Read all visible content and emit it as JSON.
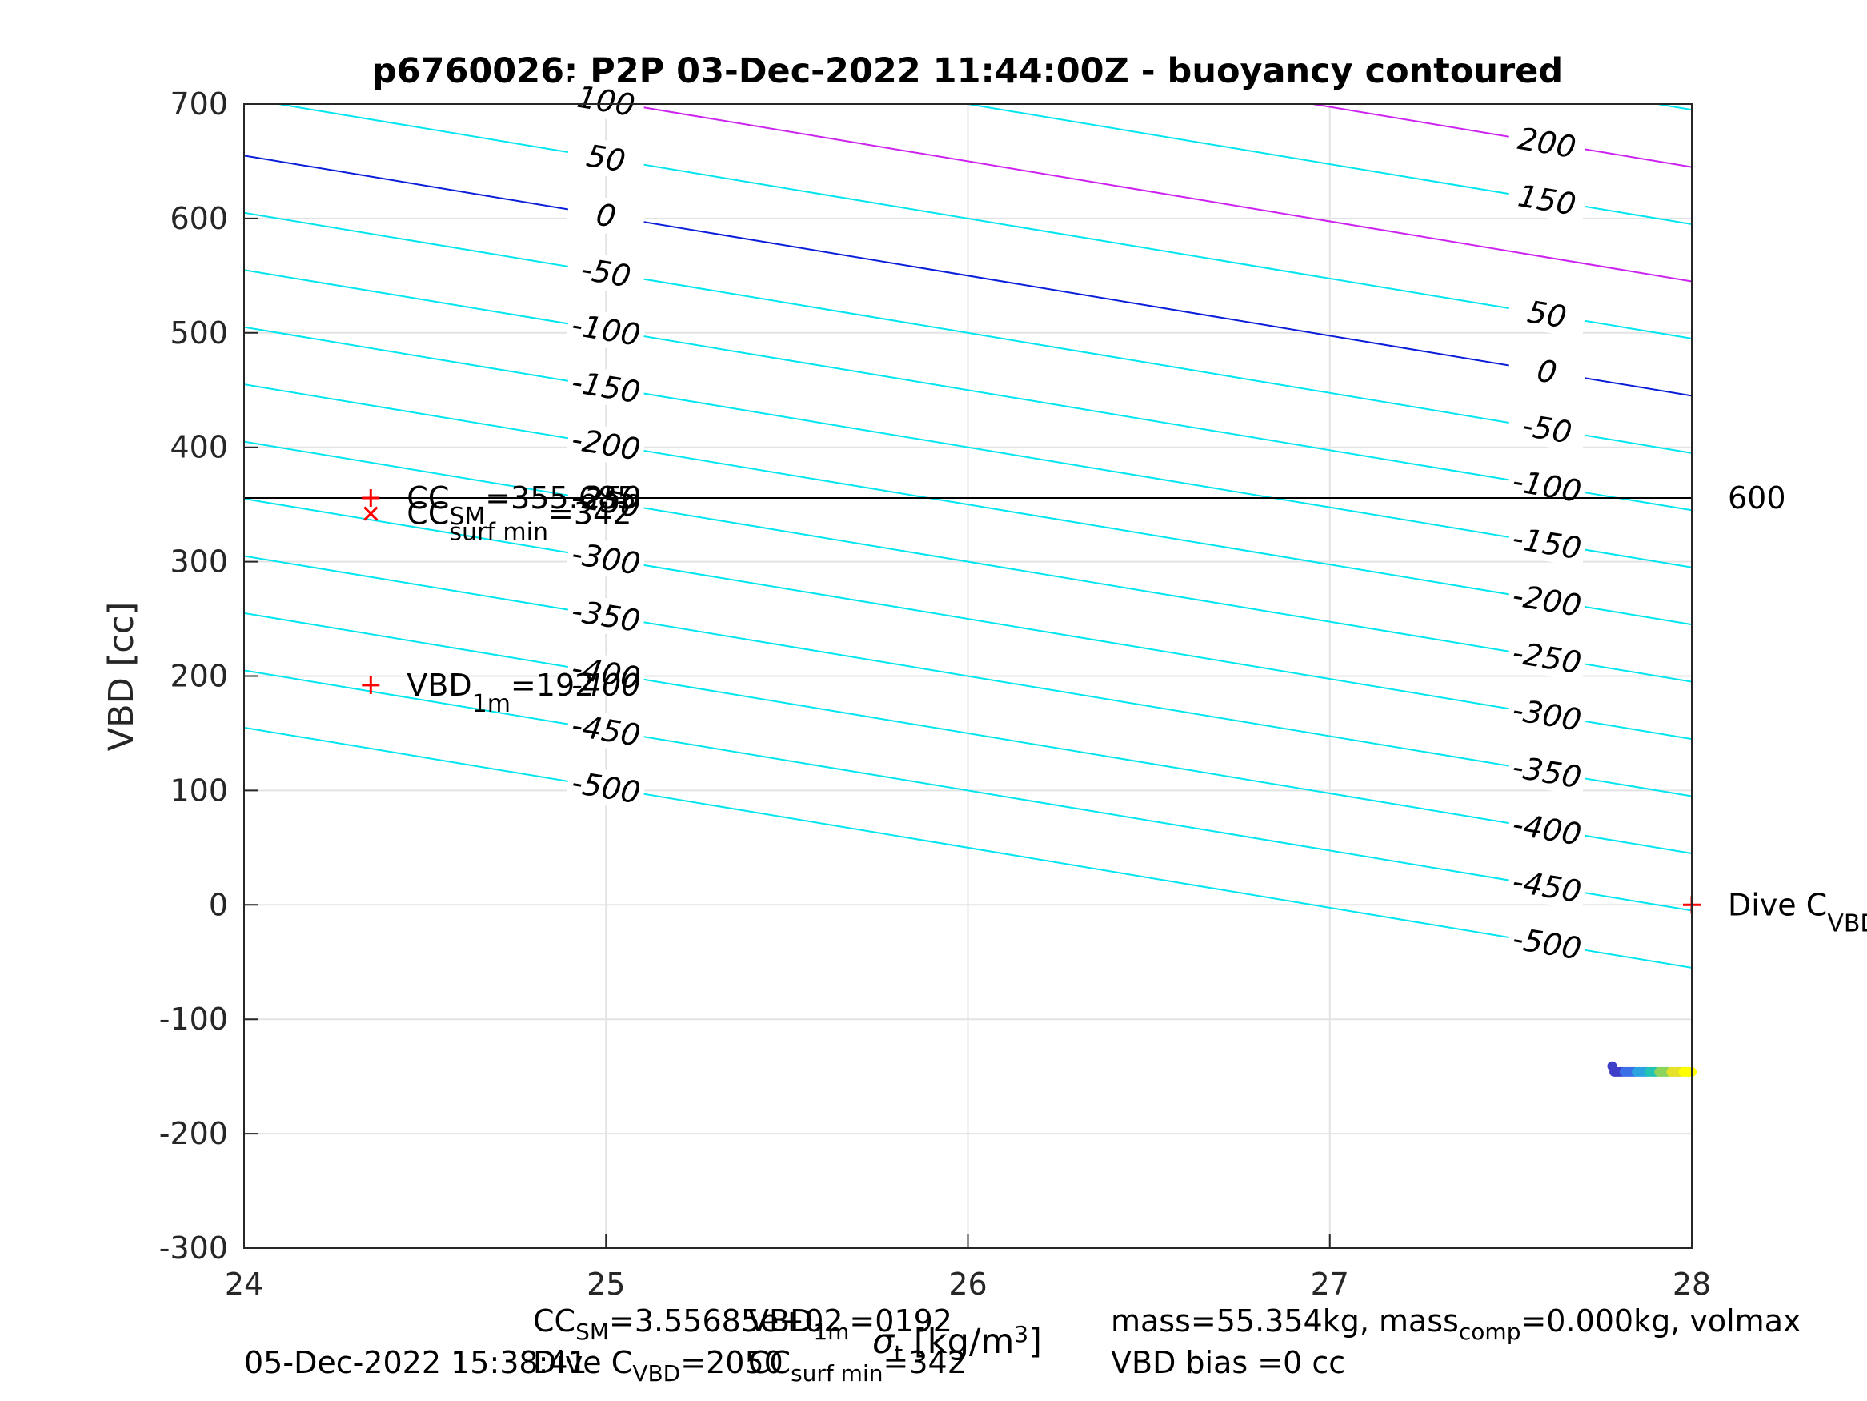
{
  "chart_data": {
    "type": "contour",
    "title": "p6760026: P2P 03-Dec-2022 11:44:00Z - buoyancy contoured",
    "ylabel": "VBD [cc]",
    "xlim": [
      24,
      28
    ],
    "ylim": [
      -300,
      700
    ],
    "x_ticks": [
      "24",
      "25",
      "26",
      "27",
      "28"
    ],
    "y_ticks": [
      "700",
      "600",
      "500",
      "400",
      "300",
      "200",
      "100",
      "0",
      "-100",
      "-200",
      "-300"
    ],
    "grid": true,
    "contours": {
      "slope_cc_per_unit_x": -52.5,
      "intercept_at_x24": 655,
      "levels": [
        {
          "value": -500,
          "label": "-500",
          "color": "#00e5ee"
        },
        {
          "value": -450,
          "label": "-450",
          "color": "#00e5ee"
        },
        {
          "value": -400,
          "label": "-400",
          "color": "#00e5ee"
        },
        {
          "value": -350,
          "label": "-350",
          "color": "#00e5ee"
        },
        {
          "value": -300,
          "label": "-300",
          "color": "#00e5ee"
        },
        {
          "value": -250,
          "label": "-250",
          "color": "#00e5ee"
        },
        {
          "value": -200,
          "label": "-200",
          "color": "#00e5ee"
        },
        {
          "value": -150,
          "label": "-150",
          "color": "#00e5ee"
        },
        {
          "value": -100,
          "label": "-100",
          "color": "#00e5ee"
        },
        {
          "value": -50,
          "label": "-50",
          "color": "#00e5ee"
        },
        {
          "value": 0,
          "label": "0",
          "color": "#0a1ed8"
        },
        {
          "value": 50,
          "label": "50",
          "color": "#00e5ee"
        },
        {
          "value": 100,
          "label": "100",
          "color": "#cc22ee"
        },
        {
          "value": 150,
          "label": "150",
          "color": "#00e5ee"
        },
        {
          "value": 200,
          "label": "200",
          "color": "#cc22ee"
        },
        {
          "value": 250,
          "label": "",
          "color": "#00e5ee"
        }
      ],
      "left_label_x": 25.0,
      "right_label_x": 27.6,
      "left_labels_shown": [
        "-500",
        "-450",
        "-400",
        "-350",
        "-300",
        "-250",
        "-200",
        "-150",
        "-100",
        "-50",
        "0",
        "50",
        "100"
      ],
      "right_labels_shown": [
        "-500",
        "-450",
        "-400",
        "-350",
        "-300",
        "-250",
        "-200",
        "-150",
        "-100",
        "-50",
        "0",
        "50",
        "150",
        "200"
      ]
    },
    "hline": {
      "y": 355.685,
      "color": "#000000",
      "right_label": "600"
    },
    "markers": [
      {
        "x": 24.35,
        "y": 355.685,
        "symbol": "+",
        "color": "#ff0000",
        "text": "CC",
        "sub": "SM",
        "suffix": "=355.685"
      },
      {
        "x": 24.35,
        "y": 342,
        "symbol": "x",
        "color": "#ff0000",
        "text": "CC",
        "sub": "surf min",
        "suffix": "=342"
      },
      {
        "x": 24.35,
        "y": 192,
        "symbol": "+",
        "color": "#ff0000",
        "text": "VBD",
        "sub": "1m",
        "suffix": "=192"
      },
      {
        "x": 28.0,
        "y": 0,
        "symbol": "+",
        "color": "#ff0000",
        "text": "Dive C",
        "sub": "VBD",
        "suffix": ""
      }
    ],
    "overlap_labels": [
      {
        "x": 25.0,
        "y": 355.685,
        "text": "-250"
      },
      {
        "x": 25.0,
        "y": 192,
        "text": "-400"
      }
    ],
    "dive_points": {
      "x_start": 27.78,
      "x_end": 28.0,
      "y": -146,
      "first_y": -141,
      "colormap": [
        "#3e3ec8",
        "#3a6fe8",
        "#2aa3e0",
        "#22c2b4",
        "#8cd45c",
        "#e6e22a",
        "#ffff00"
      ]
    }
  },
  "footer": {
    "line1_a": "CC",
    "line1_a_sub": "SM",
    "line1_b": "=3.55685e+02",
    "line1_c": "VBD",
    "line1_c_sub": "1m",
    "line1_d": "=0192",
    "xlabel_sym": "σ",
    "xlabel_sub": "t",
    "xlabel_unit": "[kg/m",
    "xlabel_sup": "3",
    "xlabel_close": "]",
    "line2_date": "05-Dec-2022 15:38:41",
    "line2_a": "Dive C",
    "line2_a_sub": "VBD",
    "line2_b": "=2050",
    "line2_c": "CC",
    "line2_c_sub": "surf min",
    "line2_d": "=342",
    "right1_a": "mass=55.354kg, mass",
    "right1_sub": "comp",
    "right1_b": "=0.000kg, volmax",
    "right2": "VBD bias =0 cc"
  }
}
